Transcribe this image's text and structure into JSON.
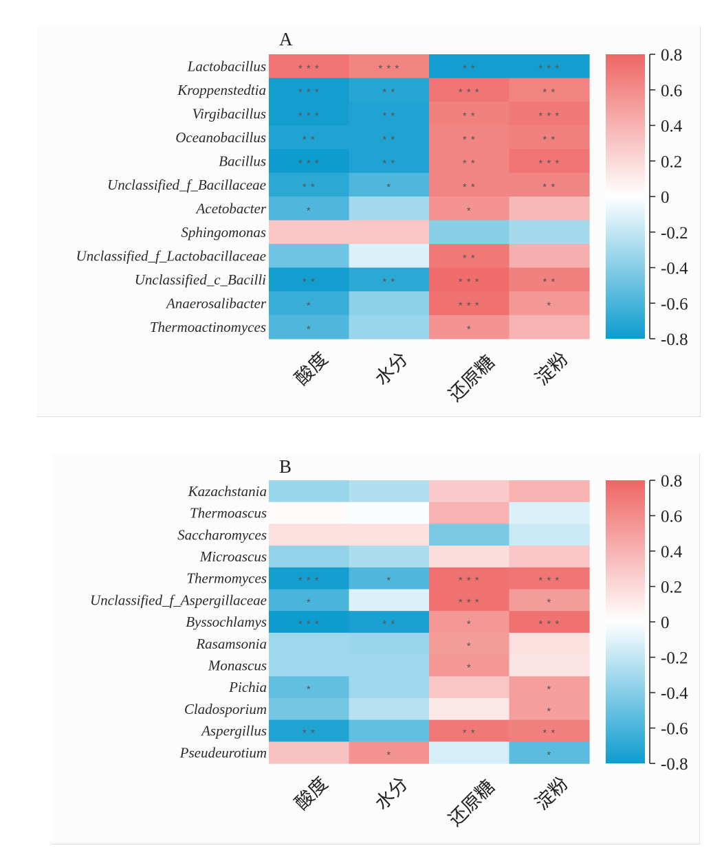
{
  "chart_data": [
    {
      "type": "heatmap",
      "title": "A",
      "xlabel": "",
      "ylabel": "",
      "columns": [
        "酸度",
        "水分",
        "还原糖",
        "淀粉"
      ],
      "rows": [
        "Lactobacillus",
        "Kroppenstedtia",
        "Virgibacillus",
        "Oceanobacillus",
        "Bacillus",
        "Unclassified_f_Bacillaceae",
        "Acetobacter",
        "Sphingomonas",
        "Unclassified_f_Lactobacillaceae",
        "Unclassified_c_Bacilli",
        "Anaerosalibacter",
        "Thermoactinomyces"
      ],
      "values": [
        [
          0.72,
          0.65,
          -0.78,
          -0.78
        ],
        [
          -0.78,
          -0.72,
          0.72,
          0.65
        ],
        [
          -0.78,
          -0.74,
          0.66,
          0.7
        ],
        [
          -0.74,
          -0.74,
          0.64,
          0.66
        ],
        [
          -0.8,
          -0.74,
          0.64,
          0.72
        ],
        [
          -0.7,
          -0.58,
          0.64,
          0.64
        ],
        [
          -0.58,
          -0.3,
          0.56,
          0.36
        ],
        [
          0.3,
          0.3,
          -0.4,
          -0.3
        ],
        [
          -0.48,
          -0.12,
          0.7,
          0.42
        ],
        [
          -0.78,
          -0.7,
          0.76,
          0.66
        ],
        [
          -0.66,
          -0.38,
          0.74,
          0.54
        ],
        [
          -0.58,
          -0.34,
          0.56,
          0.4
        ]
      ],
      "significance": [
        [
          "***",
          "***",
          "**",
          "***"
        ],
        [
          "***",
          "**",
          "***",
          "**"
        ],
        [
          "***",
          "**",
          "**",
          "***"
        ],
        [
          "**",
          "**",
          "**",
          "**"
        ],
        [
          "***",
          "**",
          "**",
          "***"
        ],
        [
          "**",
          "*",
          "**",
          "**"
        ],
        [
          "*",
          "",
          "*",
          ""
        ],
        [
          "",
          "",
          "",
          ""
        ],
        [
          "",
          "",
          "**",
          ""
        ],
        [
          "**",
          "**",
          "***",
          "**"
        ],
        [
          "*",
          "",
          "***",
          "*"
        ],
        [
          "*",
          "",
          "*",
          ""
        ]
      ],
      "colorbar": {
        "range": [
          -0.8,
          0.8
        ],
        "ticks": [
          "0.8",
          "0.6",
          "0.4",
          "0.2",
          "0",
          "-0.2",
          "-0.4",
          "-0.6",
          "-0.8"
        ],
        "low_color": "#0e9ccf",
        "mid_color": "#ffffff",
        "high_color": "#ee6664"
      },
      "legend": "right"
    },
    {
      "type": "heatmap",
      "title": "B",
      "xlabel": "",
      "ylabel": "",
      "columns": [
        "酸度",
        "水分",
        "还原糖",
        "淀粉"
      ],
      "rows": [
        "Kazachstania",
        "Thermoascus",
        "Saccharomyces",
        "Microascus",
        "Thermomyces",
        "Unclassified_f_Aspergillaceae",
        "Byssochlamys",
        "Rasamsonia",
        "Monascus",
        "Pichia",
        "Cladosporium",
        "Aspergillus",
        "Pseudeurotium"
      ],
      "values": [
        [
          -0.34,
          -0.26,
          0.28,
          0.4
        ],
        [
          0.02,
          -0.02,
          0.4,
          -0.12
        ],
        [
          0.16,
          0.16,
          -0.44,
          -0.18
        ],
        [
          -0.36,
          -0.28,
          0.18,
          0.3
        ],
        [
          -0.78,
          -0.58,
          0.74,
          0.72
        ],
        [
          -0.6,
          -0.12,
          0.74,
          0.52
        ],
        [
          -0.82,
          -0.76,
          0.54,
          0.74
        ],
        [
          -0.32,
          -0.34,
          0.52,
          0.16
        ],
        [
          -0.32,
          -0.32,
          0.54,
          0.14
        ],
        [
          -0.52,
          -0.32,
          0.3,
          0.5
        ],
        [
          -0.46,
          -0.24,
          0.12,
          0.5
        ],
        [
          -0.74,
          -0.52,
          0.7,
          0.66
        ],
        [
          0.32,
          0.56,
          -0.14,
          -0.54
        ]
      ],
      "significance": [
        [
          "",
          "",
          "",
          ""
        ],
        [
          "",
          "",
          "",
          ""
        ],
        [
          "",
          "",
          "",
          ""
        ],
        [
          "",
          "",
          "",
          ""
        ],
        [
          "***",
          "*",
          "***",
          "***"
        ],
        [
          "*",
          "",
          "***",
          "*"
        ],
        [
          "***",
          "**",
          "*",
          "***"
        ],
        [
          "",
          "",
          "*",
          ""
        ],
        [
          "",
          "",
          "*",
          ""
        ],
        [
          "*",
          "",
          "",
          "*"
        ],
        [
          "",
          "",
          "",
          "*"
        ],
        [
          "**",
          "",
          "**",
          "**"
        ],
        [
          "",
          "*",
          "",
          "*"
        ]
      ],
      "colorbar": {
        "range": [
          -0.8,
          0.8
        ],
        "ticks": [
          "0.8",
          "0.6",
          "0.4",
          "0.2",
          "0",
          "-0.2",
          "-0.4",
          "-0.6",
          "-0.8"
        ],
        "low_color": "#0e9ccf",
        "mid_color": "#ffffff",
        "high_color": "#ee6664"
      },
      "legend": "right"
    }
  ]
}
